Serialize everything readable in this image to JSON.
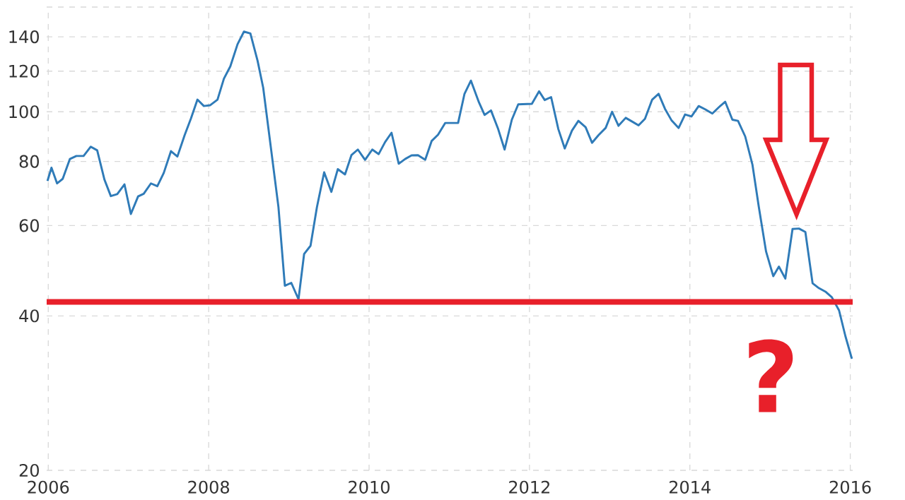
{
  "chart_data": {
    "type": "line",
    "series": [
      {
        "color": "#2f7bb8",
        "x": [
          2005.99,
          2006.04,
          2006.11,
          2006.18,
          2006.27,
          2006.35,
          2006.44,
          2006.53,
          2006.61,
          2006.7,
          2006.78,
          2006.86,
          2006.95,
          2007.03,
          2007.12,
          2007.19,
          2007.28,
          2007.36,
          2007.44,
          2007.53,
          2007.61,
          2007.7,
          2007.78,
          2007.86,
          2007.94,
          2008.02,
          2008.11,
          2008.19,
          2008.27,
          2008.36,
          2008.44,
          2008.52,
          2008.61,
          2008.68,
          2008.78,
          2008.87,
          2008.95,
          2009.03,
          2009.12,
          2009.19,
          2009.27,
          2009.35,
          2009.44,
          2009.53,
          2009.61,
          2009.7,
          2009.78,
          2009.86,
          2009.95,
          2010.04,
          2010.12,
          2010.2,
          2010.28,
          2010.37,
          2010.45,
          2010.53,
          2010.61,
          2010.7,
          2010.78,
          2010.86,
          2010.95,
          2011.02,
          2011.11,
          2011.19,
          2011.27,
          2011.37,
          2011.44,
          2011.52,
          2011.61,
          2011.69,
          2011.78,
          2011.86,
          2012.03,
          2012.12,
          2012.19,
          2012.27,
          2012.36,
          2012.44,
          2012.53,
          2012.61,
          2012.7,
          2012.78,
          2012.86,
          2012.95,
          2013.03,
          2013.11,
          2013.2,
          2013.28,
          2013.36,
          2013.44,
          2013.53,
          2013.61,
          2013.69,
          2013.77,
          2013.86,
          2013.94,
          2014.02,
          2014.11,
          2014.19,
          2014.28,
          2014.36,
          2014.44,
          2014.53,
          2014.6,
          2014.69,
          2014.78,
          2014.86,
          2014.95,
          2015.04,
          2015.11,
          2015.19,
          2015.28,
          2015.36,
          2015.44,
          2015.53,
          2015.61,
          2015.69,
          2015.77,
          2015.86,
          2015.94,
          2016.02
        ],
        "values": [
          73.3,
          77.8,
          72.5,
          74.0,
          80.9,
          82.0,
          82.0,
          85.5,
          84.1,
          73.8,
          68.5,
          69.1,
          72.2,
          63.2,
          68.4,
          69.2,
          72.5,
          71.6,
          76.0,
          83.8,
          81.8,
          90.0,
          97.1,
          105.6,
          102.6,
          103.0,
          105.6,
          116.0,
          122.6,
          135.4,
          143.3,
          142.1,
          125.7,
          111.4,
          84.1,
          65.2,
          45.8,
          46.4,
          43.1,
          52.8,
          54.8,
          65.2,
          76.2,
          69.8,
          77.3,
          75.5,
          82.3,
          84.4,
          80.6,
          84.4,
          82.7,
          87.3,
          91.0,
          79.2,
          80.9,
          82.2,
          82.3,
          80.6,
          87.7,
          90.2,
          95.1,
          95.1,
          95.1,
          108.4,
          115.0,
          104.3,
          98.6,
          100.6,
          92.5,
          84.4,
          96.5,
          103.4,
          103.6,
          109.6,
          105.4,
          106.8,
          92.5,
          84.8,
          91.9,
          96.0,
          93.3,
          87.0,
          90.0,
          93.0,
          100.0,
          93.9,
          97.3,
          95.7,
          94.1,
          96.9,
          105.6,
          108.4,
          101.3,
          96.3,
          93.0,
          98.8,
          97.9,
          102.6,
          101.1,
          99.2,
          102.0,
          104.6,
          96.5,
          96.0,
          89.5,
          78.9,
          65.2,
          53.4,
          47.8,
          49.9,
          47.3,
          59.1,
          59.2,
          58.3,
          46.3,
          45.3,
          44.6,
          43.5,
          41.0,
          36.5,
          33.0
        ]
      }
    ],
    "xlim": [
      2005.98,
      2016.03
    ],
    "xticks": [
      2006,
      2008,
      2010,
      2012,
      2014,
      2016
    ],
    "ylim": [
      20,
      160
    ],
    "yticks": [
      20,
      40,
      60,
      80,
      100,
      120,
      140,
      {
        "value": 160,
        "label": null
      }
    ],
    "log": "y",
    "grid": true,
    "marker": "none",
    "line_style": "solid",
    "ref_lines": [
      {
        "axis": "y",
        "value": 42.6,
        "color": "#e8202a",
        "line_style": "solid"
      }
    ],
    "annotations": [
      "?"
    ]
  }
}
